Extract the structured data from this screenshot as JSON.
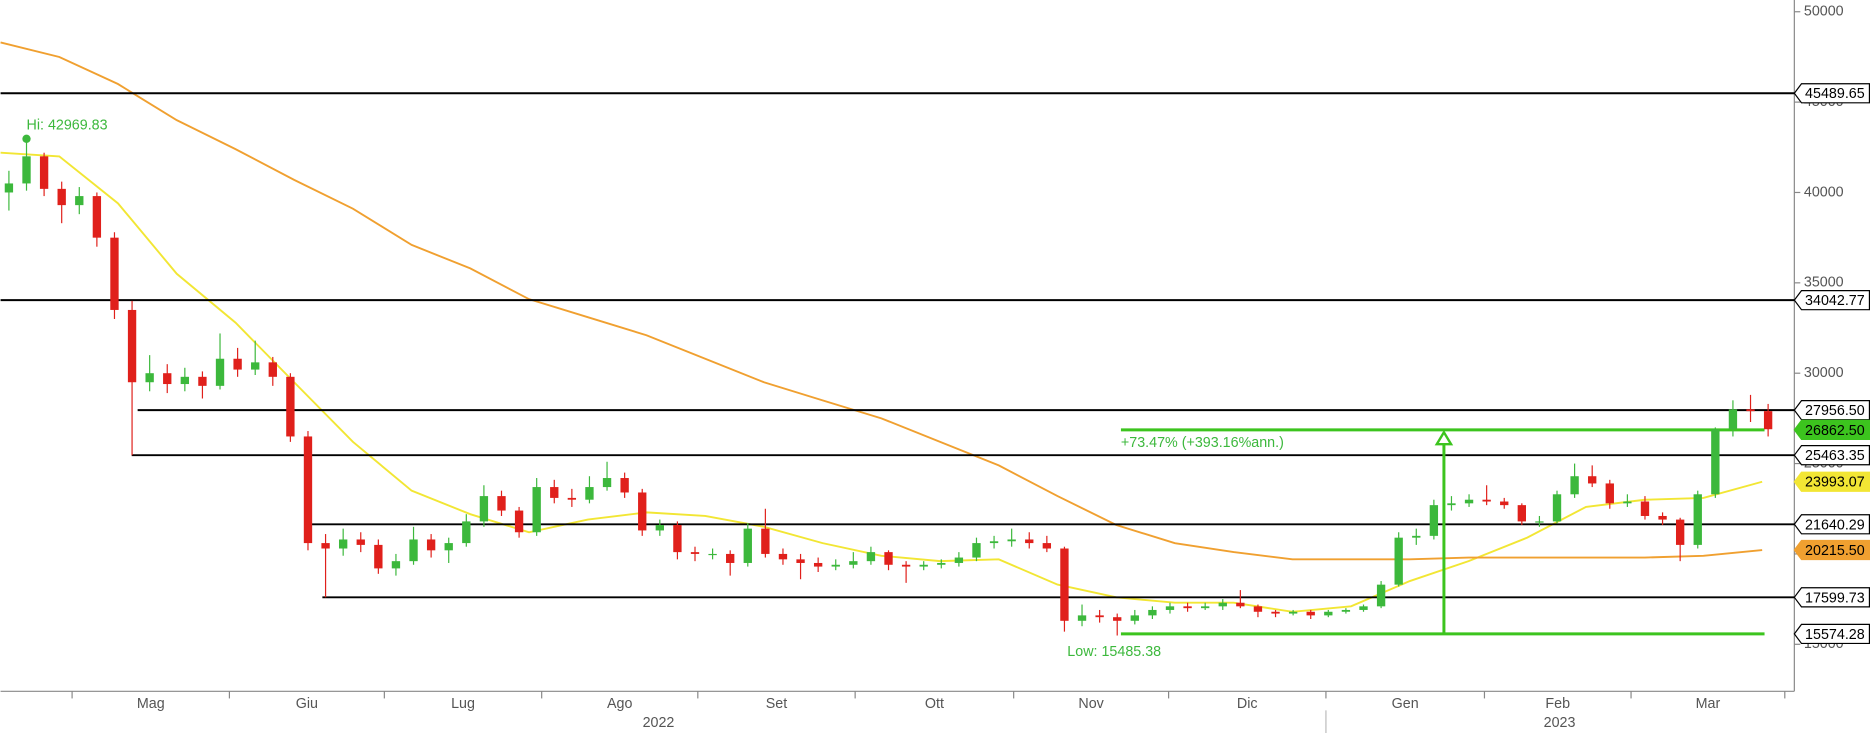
{
  "chart_data": {
    "type": "candlestick",
    "up_color": "#3cb83c",
    "down_color": "#e0201b",
    "ylim": [
      12400,
      50650
    ],
    "yticks": [
      15000,
      20000,
      25000,
      30000,
      35000,
      40000,
      45000,
      50000
    ],
    "months": [
      "Mag",
      "Giu",
      "Lug",
      "Ago",
      "Set",
      "Ott",
      "Nov",
      "Dic",
      "Gen",
      "Feb",
      "Mar"
    ],
    "years": [
      "2022",
      "2023"
    ],
    "candles": [
      [
        40000,
        41200,
        39000,
        40500
      ],
      [
        40500,
        42969.83,
        40100,
        42000
      ],
      [
        42000,
        42200,
        39800,
        40200
      ],
      [
        40200,
        40600,
        38300,
        39300
      ],
      [
        39300,
        40300,
        38800,
        39800
      ],
      [
        39800,
        40000,
        37000,
        37500
      ],
      [
        37500,
        37800,
        33000,
        33500
      ],
      [
        33500,
        34000,
        25463.35,
        29500
      ],
      [
        29500,
        31000,
        29000,
        30000
      ],
      [
        30000,
        30500,
        28900,
        29400
      ],
      [
        29400,
        30300,
        29000,
        29800
      ],
      [
        29800,
        30100,
        28600,
        29300
      ],
      [
        29300,
        32200,
        29100,
        30800
      ],
      [
        30800,
        31400,
        29800,
        30200
      ],
      [
        30200,
        31800,
        29900,
        30600
      ],
      [
        30600,
        30900,
        29300,
        29800
      ],
      [
        29800,
        30000,
        26200,
        26500
      ],
      [
        26500,
        26800,
        20200,
        20600
      ],
      [
        20600,
        21100,
        17599.73,
        20300
      ],
      [
        20300,
        21400,
        19900,
        20800
      ],
      [
        20800,
        21200,
        20100,
        20500
      ],
      [
        20500,
        20800,
        18900,
        19200
      ],
      [
        19200,
        20000,
        18800,
        19600
      ],
      [
        19600,
        21500,
        19400,
        20800
      ],
      [
        20800,
        21100,
        19800,
        20200
      ],
      [
        20200,
        20900,
        19500,
        20600
      ],
      [
        20600,
        22200,
        20400,
        21800
      ],
      [
        21800,
        23800,
        21500,
        23200
      ],
      [
        23200,
        23500,
        22100,
        22400
      ],
      [
        22400,
        22600,
        20900,
        21200
      ],
      [
        21200,
        24200,
        21000,
        23700
      ],
      [
        23700,
        24100,
        22800,
        23100
      ],
      [
        23100,
        23600,
        22600,
        23000
      ],
      [
        23000,
        24300,
        22800,
        23700
      ],
      [
        23700,
        25100,
        23500,
        24200
      ],
      [
        24200,
        24500,
        23100,
        23400
      ],
      [
        23400,
        23600,
        21000,
        21300
      ],
      [
        21300,
        21900,
        21000,
        21600
      ],
      [
        21600,
        21800,
        19700,
        20100
      ],
      [
        20100,
        20400,
        19600,
        20000
      ],
      [
        20000,
        20300,
        19700,
        20000
      ],
      [
        20000,
        20200,
        18800,
        19500
      ],
      [
        19500,
        21700,
        19300,
        21400
      ],
      [
        21400,
        22500,
        19800,
        20000
      ],
      [
        20000,
        20300,
        19400,
        19700
      ],
      [
        19700,
        20000,
        18600,
        19500
      ],
      [
        19500,
        19800,
        19000,
        19300
      ],
      [
        19300,
        19700,
        19100,
        19400
      ],
      [
        19400,
        20100,
        19200,
        19600
      ],
      [
        19600,
        20400,
        19400,
        20100
      ],
      [
        20100,
        20200,
        19100,
        19400
      ],
      [
        19400,
        19600,
        18400,
        19300
      ],
      [
        19300,
        19600,
        19100,
        19400
      ],
      [
        19400,
        19700,
        19200,
        19500
      ],
      [
        19500,
        20100,
        19300,
        19800
      ],
      [
        19800,
        20900,
        19600,
        20600
      ],
      [
        20600,
        21000,
        20300,
        20700
      ],
      [
        20700,
        21400,
        20400,
        20800
      ],
      [
        20800,
        21200,
        20300,
        20600
      ],
      [
        20600,
        21000,
        20100,
        20300
      ],
      [
        20300,
        20400,
        15700,
        16300
      ],
      [
        16300,
        17200,
        16000,
        16600
      ],
      [
        16600,
        16900,
        16200,
        16500
      ],
      [
        16500,
        16700,
        15485.38,
        16300
      ],
      [
        16300,
        16900,
        16100,
        16600
      ],
      [
        16600,
        17100,
        16400,
        16900
      ],
      [
        16900,
        17300,
        16700,
        17100
      ],
      [
        17100,
        17300,
        16800,
        17000
      ],
      [
        17000,
        17300,
        16900,
        17100
      ],
      [
        17100,
        17500,
        16900,
        17300
      ],
      [
        17300,
        18000,
        17000,
        17100
      ],
      [
        17100,
        17200,
        16500,
        16800
      ],
      [
        16800,
        16900,
        16500,
        16700
      ],
      [
        16700,
        16900,
        16600,
        16800
      ],
      [
        16800,
        16900,
        16400,
        16600
      ],
      [
        16600,
        16900,
        16500,
        16800
      ],
      [
        16800,
        17000,
        16700,
        16900
      ],
      [
        16900,
        17200,
        16800,
        17100
      ],
      [
        17100,
        18500,
        17000,
        18300
      ],
      [
        18300,
        21200,
        18200,
        20900
      ],
      [
        20900,
        21400,
        20500,
        21000
      ],
      [
        21000,
        23000,
        20800,
        22700
      ],
      [
        22700,
        23200,
        22400,
        22800
      ],
      [
        22800,
        23300,
        22600,
        23000
      ],
      [
        23000,
        23800,
        22700,
        22900
      ],
      [
        22900,
        23100,
        22500,
        22700
      ],
      [
        22700,
        22800,
        21600,
        21800
      ],
      [
        21800,
        22100,
        21500,
        21800
      ],
      [
        21800,
        23500,
        21700,
        23300
      ],
      [
        23300,
        25000,
        23100,
        24300
      ],
      [
        24300,
        24900,
        23700,
        23900
      ],
      [
        23900,
        24100,
        22500,
        22800
      ],
      [
        22800,
        23300,
        22600,
        22900
      ],
      [
        22900,
        23200,
        21900,
        22100
      ],
      [
        22100,
        22300,
        21600,
        21900
      ],
      [
        21900,
        22000,
        19600,
        20500
      ],
      [
        20500,
        23500,
        20300,
        23300
      ],
      [
        23300,
        27000,
        23100,
        26900
      ],
      [
        26900,
        28500,
        26500,
        28000
      ],
      [
        28000,
        28800,
        27300,
        27900
      ],
      [
        27900,
        28300,
        26500,
        26900
      ]
    ],
    "moving_averages": [
      {
        "color": "#f2e634",
        "tag_label": "23993.07",
        "values": [
          42200,
          42000,
          39400,
          35500,
          32800,
          29500,
          26200,
          23500,
          22200,
          21200,
          21900,
          22300,
          22100,
          21500,
          20600,
          19900,
          19600,
          19700,
          18300,
          17600,
          17300,
          17300,
          16800,
          17100,
          18500,
          19600,
          20900,
          22600,
          23000,
          23100,
          23993.07
        ]
      },
      {
        "color": "#f0a030",
        "tag_label": "20215.50",
        "values": [
          48300,
          47500,
          46000,
          44000,
          42400,
          40700,
          39100,
          37100,
          35800,
          34100,
          33100,
          32100,
          30800,
          29500,
          28500,
          27500,
          26200,
          24900,
          23200,
          21600,
          20600,
          20100,
          19700,
          19700,
          19700,
          19800,
          19800,
          19800,
          19800,
          19900,
          20215.5
        ]
      }
    ],
    "levels": [
      {
        "value": 45489.65,
        "color": "#000000"
      },
      {
        "value": 34042.77,
        "color": "#000000"
      },
      {
        "value": 27956.5,
        "label": "27956.50",
        "color": "#000000"
      },
      {
        "value": 26862.5,
        "label": "26862.50",
        "color": "#3cc41e"
      },
      {
        "value": 25463.35,
        "color": "#000000"
      },
      {
        "value": 21640.29,
        "color": "#000000"
      },
      {
        "value": 17599.73,
        "color": "#000000"
      },
      {
        "value": 15574.28,
        "color": "#3cc41e"
      }
    ],
    "annotations": {
      "high": "Hi: 42969.83",
      "low": "Low: 15485.38",
      "gain": "+73.47% (+393.16%ann.)",
      "color": "#3cb83c"
    }
  }
}
